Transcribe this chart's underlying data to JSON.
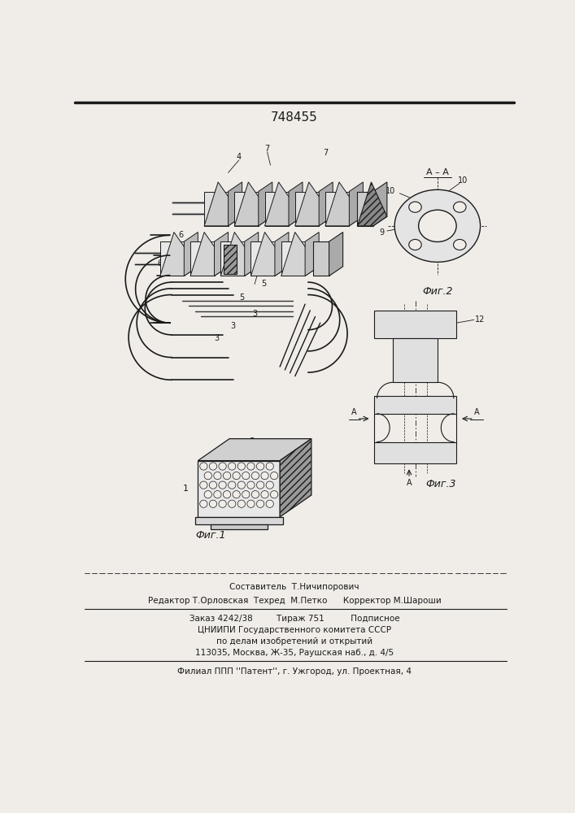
{
  "patent_number": "748455",
  "bg": "#f0ede8",
  "lc": "#1a1a1a",
  "footer": {
    "composer": "Составитель  Т.Ничипорович",
    "editor": "Редактор Т.Орловская  Техред  М.Петко      Корректор М.Шароши",
    "order": "Заказ 4242/38         Тираж 751          Подписное",
    "institute": "ЦНИИПИ Государственного комитета СССР",
    "about": "по делам изобретений и открытий",
    "address": "113035, Москва, Ж-35, Раушская наб., д. 4/5",
    "filial": "Филиал ППП ''Патент'', г. Ужгород, ул. Проектная, 4"
  }
}
